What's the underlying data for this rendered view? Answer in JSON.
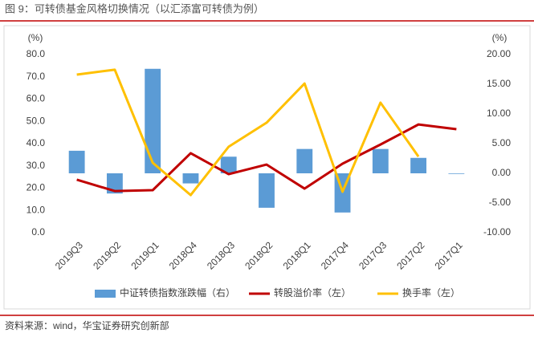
{
  "chart_data": {
    "type": "combo",
    "title": "图 9：可转债基金风格切换情况（以汇添富可转债为例）",
    "source": "资料来源：wind，华宝证券研究创新部",
    "y_unit": "(%)",
    "y2_unit": "(%)",
    "categories": [
      "2019Q3",
      "2019Q2",
      "2019Q1",
      "2018Q4",
      "2018Q3",
      "2018Q2",
      "2018Q1",
      "2017Q4",
      "2017Q3",
      "2017Q2",
      "2017Q1"
    ],
    "series": [
      {
        "name": "中证转债指数涨跌幅（右）",
        "type": "bar",
        "axis": "y2",
        "color": "#5b9bd5",
        "values": [
          3.8,
          -3.4,
          17.6,
          -1.7,
          2.8,
          -5.8,
          4.1,
          -6.6,
          4.1,
          2.6,
          -0.1
        ]
      },
      {
        "name": "转股溢价率（左）",
        "type": "line",
        "color": "#c00000",
        "values": [
          23.8,
          18.7,
          19.1,
          35.7,
          26.3,
          30.6,
          19.8,
          31.0,
          39.6,
          48.6,
          46.5
        ]
      },
      {
        "name": "换手率（左）",
        "type": "line",
        "color": "#ffc000",
        "values": [
          71.0,
          73.2,
          31.4,
          16.9,
          38.6,
          49.4,
          67.0,
          18.4,
          58.4,
          34.2,
          null
        ]
      }
    ],
    "ylim": [
      0,
      80
    ],
    "yticks": [
      {
        "value": 0,
        "label": "0.0"
      },
      {
        "value": 10,
        "label": "10.0"
      },
      {
        "value": 20,
        "label": "20.0"
      },
      {
        "value": 30,
        "label": "30.0"
      },
      {
        "value": 40,
        "label": "40.0"
      },
      {
        "value": 50,
        "label": "50.0"
      },
      {
        "value": 60,
        "label": "60.0"
      },
      {
        "value": 70,
        "label": "70.0"
      },
      {
        "value": 80,
        "label": "80.0"
      }
    ],
    "y2lim": [
      -10,
      20
    ],
    "y2ticks": [
      {
        "value": -10,
        "label": "-10.00"
      },
      {
        "value": -5,
        "label": "-5.00"
      },
      {
        "value": 0,
        "label": "0.00"
      },
      {
        "value": 5,
        "label": "5.00"
      },
      {
        "value": 10,
        "label": "10.00"
      },
      {
        "value": 15,
        "label": "15.00"
      },
      {
        "value": 20,
        "label": "20.00"
      }
    ],
    "legend": "bottom"
  }
}
